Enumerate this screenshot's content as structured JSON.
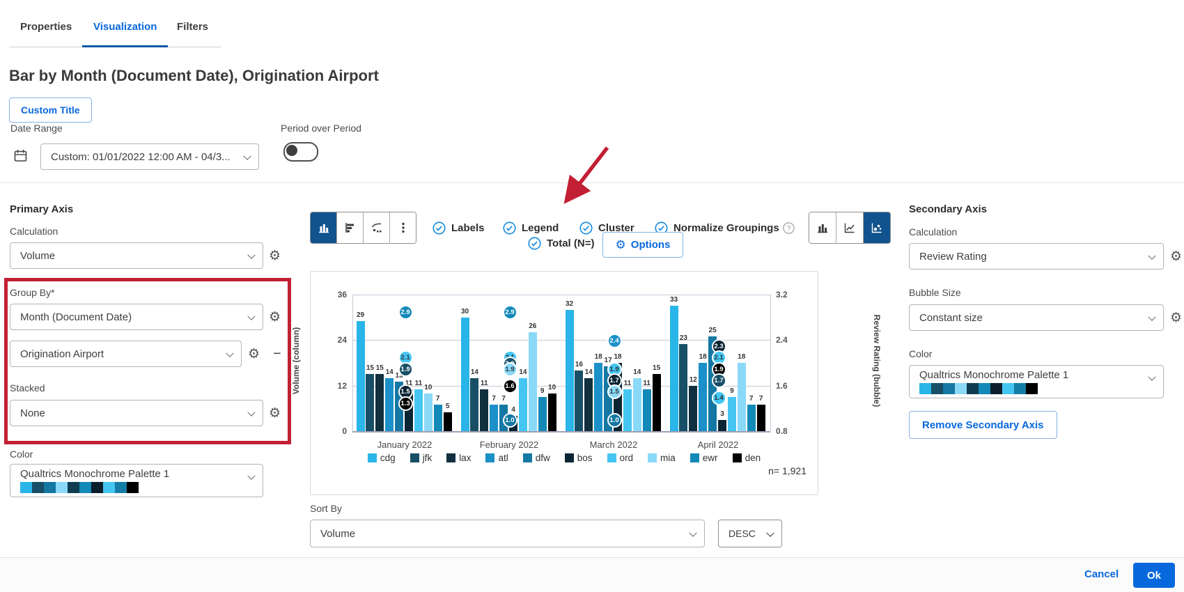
{
  "tabs": {
    "properties": "Properties",
    "visualization": "Visualization",
    "filters": "Filters"
  },
  "page": {
    "title": "Bar by Month (Document Date), Origination Airport",
    "custom_title_button": "Custom Title"
  },
  "date_range": {
    "label": "Date Range",
    "value": "Custom: 01/01/2022 12:00 AM - 04/3...",
    "period_label": "Period over Period"
  },
  "primary_axis": {
    "header": "Primary Axis",
    "calculation_label": "Calculation",
    "calculation_value": "Volume",
    "group_by_label": "Group By*",
    "group_by_value_1": "Month (Document Date)",
    "group_by_value_2": "Origination Airport",
    "stacked_label": "Stacked",
    "stacked_value": "None",
    "color_label": "Color",
    "color_value": "Qualtrics Monochrome Palette 1"
  },
  "toolbar": {
    "labels": "Labels",
    "legend": "Legend",
    "cluster": "Cluster",
    "normalize": "Normalize Groupings",
    "total": "Total (N=)",
    "options": "Options"
  },
  "secondary_axis": {
    "header": "Secondary Axis",
    "calculation_label": "Calculation",
    "calculation_value": "Review Rating",
    "bubble_size_label": "Bubble Size",
    "bubble_size_value": "Constant size",
    "color_label": "Color",
    "color_value": "Qualtrics Monochrome Palette 1",
    "remove_button": "Remove Secondary Axis"
  },
  "sort": {
    "label": "Sort By",
    "value": "Volume",
    "direction": "DESC"
  },
  "footer": {
    "cancel": "Cancel",
    "ok": "Ok"
  },
  "accent_colors": {
    "link_blue": "#0768DD",
    "active_toggle": "#11538E",
    "highlight_red": "#C31F34",
    "check_blue": "#1E8FE0"
  },
  "palette_colors": [
    "#29B5E8",
    "#184F66",
    "#1478A3",
    "#8BD9F8",
    "#0F3C50",
    "#1389B8",
    "#0B1F2D",
    "#45C6F2",
    "#147DA6",
    "#000000"
  ],
  "chart_data": {
    "type": "bar",
    "subtype": "clustered-bar-with-bubbles",
    "categories": [
      "January 2022",
      "February 2022",
      "March 2022",
      "April 2022"
    ],
    "series": [
      {
        "name": "cdg",
        "color": "#29B5E8",
        "values": [
          29,
          30,
          32,
          33
        ]
      },
      {
        "name": "jfk",
        "color": "#184F66",
        "values": [
          15,
          14,
          16,
          23
        ]
      },
      {
        "name": "lax",
        "color": "#11303F",
        "values": [
          15,
          11,
          14,
          12
        ]
      },
      {
        "name": "atl",
        "color": "#1B90C9",
        "values": [
          14,
          7,
          18,
          18
        ]
      },
      {
        "name": "dfw",
        "color": "#1478A3",
        "values": [
          13,
          7,
          17,
          25
        ]
      },
      {
        "name": "bos",
        "color": "#0B2534",
        "values": [
          11,
          4,
          18,
          3
        ]
      },
      {
        "name": "ord",
        "color": "#45C6F2",
        "values": [
          11,
          14,
          11,
          9
        ]
      },
      {
        "name": "mia",
        "color": "#8BD9F8",
        "values": [
          10,
          26,
          14,
          18
        ]
      },
      {
        "name": "ewr",
        "color": "#1389B8",
        "values": [
          7,
          9,
          11,
          7
        ]
      },
      {
        "name": "den",
        "color": "#000000",
        "values": [
          5,
          10,
          15,
          7
        ]
      }
    ],
    "bubbles": [
      {
        "points": [
          {
            "v": 2.9,
            "color": "#1389B8"
          },
          {
            "v": 2.1,
            "color": "#45C6F2",
            "light": true
          },
          {
            "v": 1.9,
            "color": "#184F66"
          },
          {
            "v": 1.5,
            "color": "#0B2534"
          },
          {
            "v": 1.3,
            "color": "#000000"
          }
        ]
      },
      {
        "points": [
          {
            "v": 2.9,
            "color": "#1389B8"
          },
          {
            "v": 2.1,
            "color": "#45C6F2",
            "light": true
          },
          {
            "v": 2.0,
            "color": "#184F66"
          },
          {
            "v": 1.9,
            "color": "#8BD9F8",
            "light": true
          },
          {
            "v": 1.6,
            "color": "#000000"
          },
          {
            "v": 1.0,
            "color": "#1478A3"
          }
        ]
      },
      {
        "points": [
          {
            "v": 2.4,
            "color": "#1B90C9"
          },
          {
            "v": 1.9,
            "color": "#45C6F2",
            "light": true
          },
          {
            "v": 1.7,
            "color": "#0B2534"
          },
          {
            "v": 1.5,
            "color": "#8BD9F8",
            "light": true
          },
          {
            "v": 1.0,
            "color": "#1478A3"
          }
        ]
      },
      {
        "points": [
          {
            "v": 2.3,
            "color": "#0B2534"
          },
          {
            "v": 2.1,
            "color": "#45C6F2",
            "light": true
          },
          {
            "v": 1.9,
            "color": "#000000"
          },
          {
            "v": 1.7,
            "color": "#184F66"
          },
          {
            "v": 1.4,
            "color": "#45C6F2",
            "light": true
          }
        ]
      }
    ],
    "ylabel": "Volume (column)",
    "y2label": "Review Rating (bubble)",
    "yticks": [
      0,
      12,
      24,
      36
    ],
    "y2ticks": [
      0.8,
      1.6,
      2.4,
      3.2
    ],
    "ylim": [
      0,
      36
    ],
    "y2lim": [
      0.8,
      3.2
    ],
    "grid": true,
    "legend_position": "bottom",
    "n_label": "n= 1,921"
  }
}
